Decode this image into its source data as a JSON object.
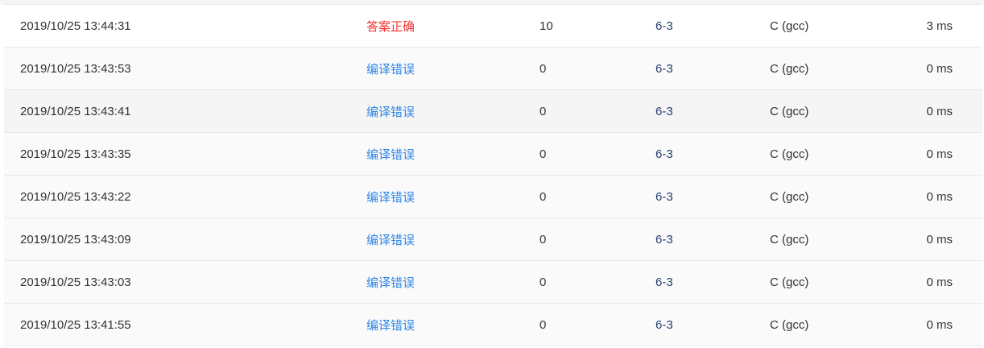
{
  "colors": {
    "accepted": "#f5312d",
    "compile_error": "#2f86e6",
    "problem_link": "#253c6e"
  },
  "rows": [
    {
      "time": "2019/10/25 13:44:31",
      "status": "答案正确",
      "status_type": "accepted",
      "score": "10",
      "problem": "6-3",
      "language": "C (gcc)",
      "run_time": "3 ms"
    },
    {
      "time": "2019/10/25 13:43:53",
      "status": "编译错误",
      "status_type": "compile_error",
      "score": "0",
      "problem": "6-3",
      "language": "C (gcc)",
      "run_time": "0 ms"
    },
    {
      "time": "2019/10/25 13:43:41",
      "status": "编译错误",
      "status_type": "compile_error",
      "score": "0",
      "problem": "6-3",
      "language": "C (gcc)",
      "run_time": "0 ms"
    },
    {
      "time": "2019/10/25 13:43:35",
      "status": "编译错误",
      "status_type": "compile_error",
      "score": "0",
      "problem": "6-3",
      "language": "C (gcc)",
      "run_time": "0 ms"
    },
    {
      "time": "2019/10/25 13:43:22",
      "status": "编译错误",
      "status_type": "compile_error",
      "score": "0",
      "problem": "6-3",
      "language": "C (gcc)",
      "run_time": "0 ms"
    },
    {
      "time": "2019/10/25 13:43:09",
      "status": "编译错误",
      "status_type": "compile_error",
      "score": "0",
      "problem": "6-3",
      "language": "C (gcc)",
      "run_time": "0 ms"
    },
    {
      "time": "2019/10/25 13:43:03",
      "status": "编译错误",
      "status_type": "compile_error",
      "score": "0",
      "problem": "6-3",
      "language": "C (gcc)",
      "run_time": "0 ms"
    },
    {
      "time": "2019/10/25 13:41:55",
      "status": "编译错误",
      "status_type": "compile_error",
      "score": "0",
      "problem": "6-3",
      "language": "C (gcc)",
      "run_time": "0 ms"
    }
  ]
}
